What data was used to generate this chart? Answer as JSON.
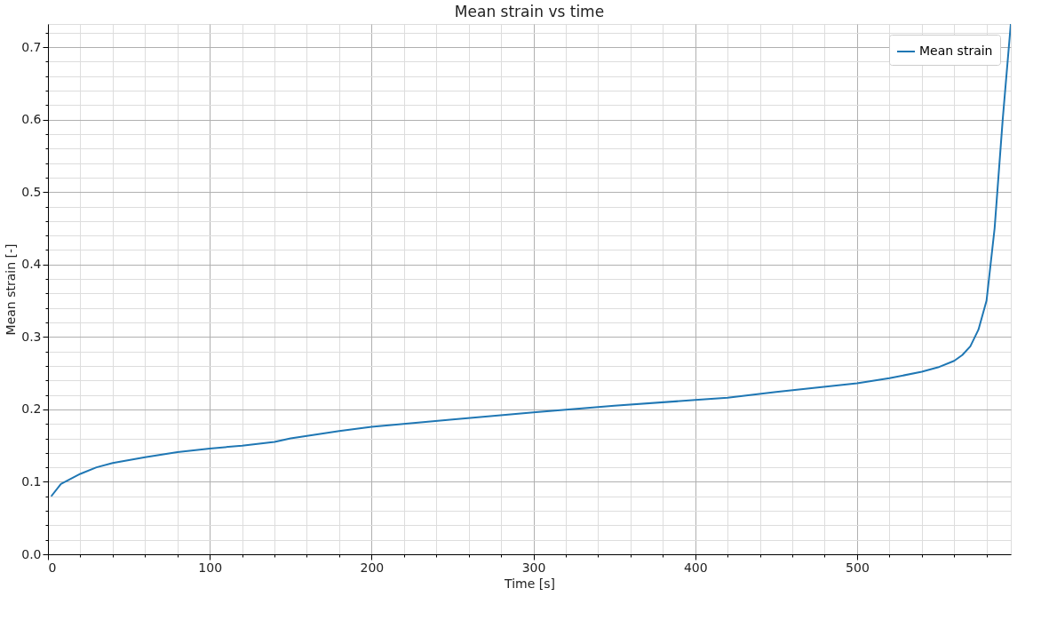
{
  "chart_data": {
    "type": "line",
    "title": "Mean strain vs time",
    "xlabel": "Time [s]",
    "ylabel": "Mean strain [-]",
    "x": [
      2,
      8,
      20,
      30,
      40,
      60,
      80,
      100,
      120,
      140,
      150,
      180,
      200,
      250,
      300,
      350,
      400,
      420,
      450,
      500,
      520,
      540,
      550,
      560,
      565,
      570,
      575,
      580,
      585,
      590,
      595
    ],
    "series": [
      {
        "name": "Mean strain",
        "color": "#1f77b4",
        "values": [
          0.08,
          0.097,
          0.111,
          0.12,
          0.126,
          0.134,
          0.141,
          0.146,
          0.15,
          0.155,
          0.16,
          0.17,
          0.176,
          0.186,
          0.196,
          0.205,
          0.213,
          0.216,
          0.224,
          0.236,
          0.243,
          0.252,
          0.258,
          0.267,
          0.275,
          0.287,
          0.31,
          0.35,
          0.45,
          0.6,
          0.732
        ]
      }
    ],
    "xlim": [
      0,
      595
    ],
    "xticks": [
      0,
      {
        "value": 20,
        "label": null
      },
      {
        "value": 40,
        "label": null
      },
      {
        "value": 60,
        "label": null
      },
      {
        "value": 80,
        "label": null
      },
      100,
      {
        "value": 120,
        "label": null
      },
      {
        "value": 140,
        "label": null
      },
      {
        "value": 160,
        "label": null
      },
      {
        "value": 180,
        "label": null
      },
      200,
      {
        "value": 220,
        "label": null
      },
      {
        "value": 240,
        "label": null
      },
      {
        "value": 260,
        "label": null
      },
      {
        "value": 280,
        "label": null
      },
      300,
      {
        "value": 320,
        "label": null
      },
      {
        "value": 340,
        "label": null
      },
      {
        "value": 360,
        "label": null
      },
      {
        "value": 380,
        "label": null
      },
      400,
      {
        "value": 420,
        "label": null
      },
      {
        "value": 440,
        "label": null
      },
      {
        "value": 460,
        "label": null
      },
      {
        "value": 480,
        "label": null
      },
      500,
      {
        "value": 520,
        "label": null
      },
      {
        "value": 540,
        "label": null
      },
      {
        "value": 560,
        "label": null
      },
      {
        "value": 580,
        "label": null
      }
    ],
    "ylim": [
      0,
      0.732
    ],
    "yticks": [
      {
        "value": 0,
        "label": "0.0"
      },
      {
        "value": 0.02,
        "label": null
      },
      {
        "value": 0.04,
        "label": null
      },
      {
        "value": 0.06,
        "label": null
      },
      {
        "value": 0.08,
        "label": null
      },
      0.1,
      {
        "value": 0.12,
        "label": null
      },
      {
        "value": 0.14,
        "label": null
      },
      {
        "value": 0.16,
        "label": null
      },
      {
        "value": 0.18,
        "label": null
      },
      0.2,
      {
        "value": 0.22,
        "label": null
      },
      {
        "value": 0.24,
        "label": null
      },
      {
        "value": 0.26,
        "label": null
      },
      {
        "value": 0.28,
        "label": null
      },
      0.3,
      {
        "value": 0.32,
        "label": null
      },
      {
        "value": 0.34,
        "label": null
      },
      {
        "value": 0.36,
        "label": null
      },
      {
        "value": 0.38,
        "label": null
      },
      0.4,
      {
        "value": 0.42,
        "label": null
      },
      {
        "value": 0.44,
        "label": null
      },
      {
        "value": 0.46,
        "label": null
      },
      {
        "value": 0.48,
        "label": null
      },
      0.5,
      {
        "value": 0.52,
        "label": null
      },
      {
        "value": 0.54,
        "label": null
      },
      {
        "value": 0.56,
        "label": null
      },
      {
        "value": 0.58,
        "label": null
      },
      0.6,
      {
        "value": 0.62,
        "label": null
      },
      {
        "value": 0.64,
        "label": null
      },
      {
        "value": 0.66,
        "label": null
      },
      {
        "value": 0.68,
        "label": null
      },
      0.7,
      {
        "value": 0.72,
        "label": null
      }
    ],
    "grid": true,
    "legend": "top right",
    "marker": "none",
    "line_style": "solid"
  }
}
